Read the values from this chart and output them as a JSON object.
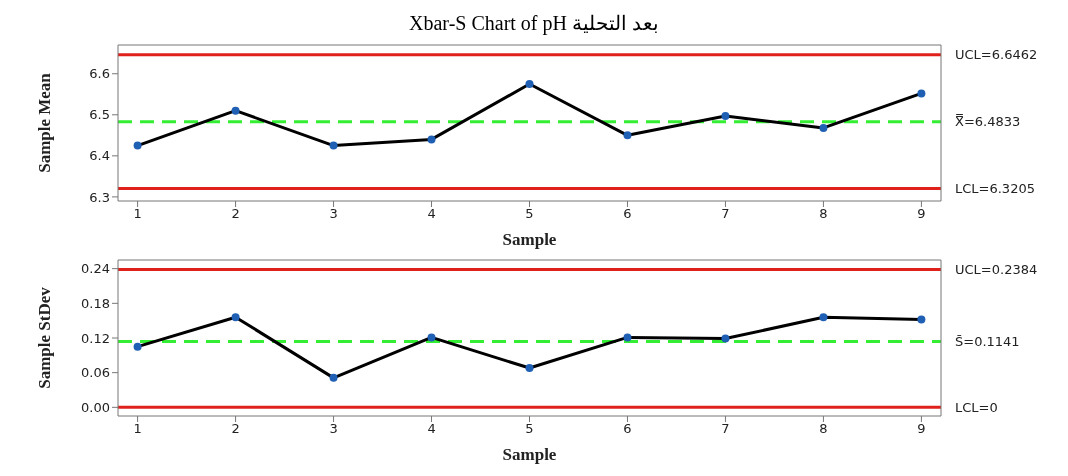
{
  "chart_data": [
    {
      "type": "line",
      "title": "Xbar-S Chart of pH بعد التحلية",
      "xlabel": "Sample",
      "ylabel": "Sample Mean",
      "x": [
        1,
        2,
        3,
        4,
        5,
        6,
        7,
        8,
        9
      ],
      "series": [
        {
          "color": "#000000",
          "colors": [
            "#1f5fb4",
            "#1f5fb4",
            "#1f5fb4",
            "#1f5fb4",
            "#1f5fb4",
            "#1f5fb4",
            "#1f5fb4",
            "#1f5fb4",
            "#1f5fb4"
          ],
          "values": [
            6.425,
            6.51,
            6.425,
            6.44,
            6.575,
            6.45,
            6.497,
            6.468,
            6.552
          ]
        }
      ],
      "xlim": [
        0.8,
        9.2
      ],
      "xticks": [
        1,
        2,
        3,
        4,
        5,
        6,
        7,
        8,
        9
      ],
      "ylim": [
        6.29,
        6.67
      ],
      "yticks": [
        6.3,
        6.4,
        6.5,
        6.6
      ],
      "ref_lines": [
        {
          "axis": "y",
          "value": 6.6462,
          "label": "UCL=6.6462",
          "color": "#e0201b",
          "line_style": "solid"
        },
        {
          "axis": "y",
          "value": 6.4833,
          "label": "X̿=6.4833",
          "color": "#33ee33",
          "line_style": "dashed"
        },
        {
          "axis": "y",
          "value": 6.3205,
          "label": "LCL=6.3205",
          "color": "#e0201b",
          "line_style": "solid"
        }
      ],
      "grid": false,
      "legend": false,
      "marker": "circle",
      "line_style": "solid"
    },
    {
      "type": "line",
      "xlabel": "Sample",
      "ylabel": "Sample StDev",
      "x": [
        1,
        2,
        3,
        4,
        5,
        6,
        7,
        8,
        9
      ],
      "series": [
        {
          "color": "#000000",
          "colors": [
            "#1f5fb4",
            "#1f5fb4",
            "#1f5fb4",
            "#1f5fb4",
            "#1f5fb4",
            "#1f5fb4",
            "#1f5fb4",
            "#1f5fb4",
            "#1f5fb4"
          ],
          "values": [
            0.105,
            0.156,
            0.051,
            0.121,
            0.068,
            0.121,
            0.119,
            0.156,
            0.152
          ]
        }
      ],
      "xlim": [
        0.8,
        9.2
      ],
      "xticks": [
        1,
        2,
        3,
        4,
        5,
        6,
        7,
        8,
        9
      ],
      "ylim": [
        -0.015,
        0.255
      ],
      "yticks": [
        {
          "value": 0,
          "label": "0.00"
        },
        0.06,
        0.12,
        0.18,
        0.24
      ],
      "ref_lines": [
        {
          "axis": "y",
          "value": 0.2384,
          "label": "UCL=0.2384",
          "color": "#e0201b",
          "line_style": "solid"
        },
        {
          "axis": "y",
          "value": 0.1141,
          "label": "S̄=0.1141",
          "color": "#33ee33",
          "line_style": "dashed"
        },
        {
          "axis": "y",
          "value": 0,
          "label": "LCL=0",
          "color": "#e0201b",
          "line_style": "solid"
        }
      ],
      "grid": false,
      "legend": false,
      "marker": "circle",
      "line_style": "solid"
    }
  ]
}
